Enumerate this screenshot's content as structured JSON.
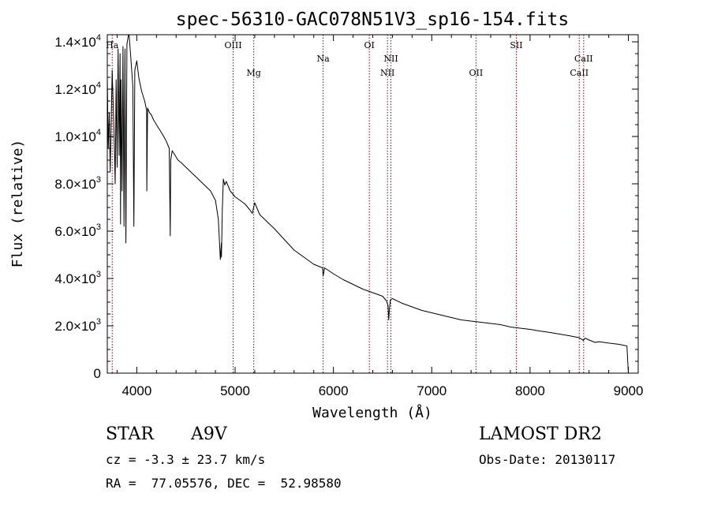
{
  "chart_data": {
    "type": "line",
    "title": "spec-56310-GAC078N51V3_sp16-154.fits",
    "xlabel": "Wavelength (Å)",
    "ylabel": "Flux (relative)",
    "xlim": [
      3700,
      9100
    ],
    "ylim": [
      0,
      14300
    ],
    "grid": false,
    "x_ticks": [
      {
        "value": 4000,
        "label": "4000"
      },
      {
        "value": 5000,
        "label": "5000"
      },
      {
        "value": 6000,
        "label": "6000"
      },
      {
        "value": 7000,
        "label": "7000"
      },
      {
        "value": 8000,
        "label": "8000"
      },
      {
        "value": 9000,
        "label": "9000"
      }
    ],
    "y_ticks": [
      {
        "value": 0,
        "mantissa": "0",
        "exponent": ""
      },
      {
        "value": 2000,
        "mantissa": "2.0×10",
        "exponent": "3"
      },
      {
        "value": 4000,
        "mantissa": "4.0×10",
        "exponent": "3"
      },
      {
        "value": 6000,
        "mantissa": "6.0×10",
        "exponent": "3"
      },
      {
        "value": 8000,
        "mantissa": "8.0×10",
        "exponent": "3"
      },
      {
        "value": 10000,
        "mantissa": "1.0×10",
        "exponent": "4"
      },
      {
        "value": 12000,
        "mantissa": "1.2×10",
        "exponent": "4"
      },
      {
        "value": 14000,
        "mantissa": "1.4×10",
        "exponent": "4"
      }
    ],
    "line_color": "#000000",
    "marker_color": "#8b0000",
    "line_markers": [
      {
        "label": "Ha",
        "wavelength": 3750,
        "level": "top"
      },
      {
        "label": "OIII",
        "wavelength": 4980,
        "level": "top"
      },
      {
        "label": "Mg",
        "wavelength": 5190,
        "level": "lower"
      },
      {
        "label": "Na",
        "wavelength": 5895,
        "level": "upper"
      },
      {
        "label": "OI",
        "wavelength": 6365,
        "level": "top"
      },
      {
        "label": "NII",
        "wavelength": 6550,
        "level": "lower"
      },
      {
        "label": "NII",
        "wavelength": 6585,
        "level": "upper"
      },
      {
        "label": "OII",
        "wavelength": 7450,
        "level": "lower"
      },
      {
        "label": "SII",
        "wavelength": 7860,
        "level": "top"
      },
      {
        "label": "CaII",
        "wavelength": 8500,
        "level": "lower"
      },
      {
        "label": "CaII",
        "wavelength": 8545,
        "level": "upper"
      }
    ],
    "series": [
      {
        "x": [
          3700,
          3710,
          3720,
          3730,
          3750,
          3770,
          3780,
          3790,
          3800,
          3810,
          3820,
          3830,
          3835,
          3840,
          3850,
          3860,
          3870,
          3880,
          3889,
          3900,
          3920,
          3940,
          3960,
          3970,
          3980,
          4000,
          4020,
          4050,
          4080,
          4100,
          4102,
          4110,
          4130,
          4150,
          4170,
          4200,
          4230,
          4260,
          4300,
          4330,
          4340,
          4345,
          4360,
          4390,
          4420,
          4450,
          4500,
          4550,
          4600,
          4650,
          4700,
          4750,
          4800,
          4830,
          4850,
          4860,
          4861,
          4870,
          4880,
          4895,
          4910,
          4950,
          5000,
          5050,
          5100,
          5150,
          5175,
          5200,
          5250,
          5300,
          5400,
          5500,
          5600,
          5700,
          5800,
          5890,
          5895,
          5910,
          6000,
          6100,
          6200,
          6300,
          6400,
          6500,
          6540,
          6556,
          6563,
          6570,
          6580,
          6600,
          6700,
          6800,
          6900,
          7000,
          7100,
          7200,
          7300,
          7400,
          7500,
          7600,
          7700,
          7800,
          7900,
          8000,
          8100,
          8200,
          8300,
          8400,
          8500,
          8542,
          8560,
          8600,
          8662,
          8700,
          8800,
          8900,
          8985,
          9000
        ],
        "y": [
          12500,
          9500,
          11000,
          8500,
          12800,
          10000,
          8000,
          12400,
          8700,
          13700,
          9200,
          13500,
          6300,
          12400,
          7700,
          13800,
          6200,
          13700,
          5500,
          13900,
          14400,
          13300,
          12100,
          6200,
          12800,
          13200,
          12500,
          11900,
          11500,
          11100,
          7700,
          11200,
          11000,
          10900,
          10700,
          10500,
          10300,
          10100,
          9800,
          9500,
          5800,
          9000,
          9400,
          9200,
          9000,
          8900,
          8700,
          8500,
          8300,
          8100,
          7900,
          7700,
          7300,
          6500,
          4800,
          5500,
          4900,
          6900,
          8200,
          7950,
          8100,
          7700,
          7450,
          7300,
          7150,
          6900,
          6750,
          7200,
          6700,
          6500,
          6100,
          5650,
          5200,
          4900,
          4600,
          4450,
          4100,
          4450,
          4200,
          3950,
          3750,
          3550,
          3400,
          3250,
          3050,
          2850,
          2250,
          2750,
          3100,
          3150,
          2950,
          2800,
          2650,
          2550,
          2450,
          2350,
          2250,
          2200,
          2150,
          2100,
          2050,
          1950,
          1900,
          1850,
          1780,
          1720,
          1650,
          1580,
          1500,
          1380,
          1480,
          1400,
          1300,
          1330,
          1270,
          1220,
          1150,
          0
        ]
      }
    ]
  },
  "info": {
    "object_class": "STAR",
    "subclass": "A9V",
    "survey": "LAMOST DR2",
    "cz": "cz = -3.3 ± 23.7 km/s",
    "obs_date": "Obs-Date: 20130117",
    "coords": "RA =  77.05576, DEC =  52.98580"
  }
}
